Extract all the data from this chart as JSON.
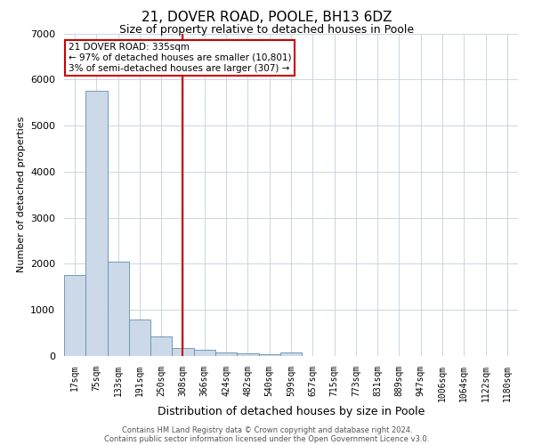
{
  "title": "21, DOVER ROAD, POOLE, BH13 6DZ",
  "subtitle": "Size of property relative to detached houses in Poole",
  "xlabel": "Distribution of detached houses by size in Poole",
  "ylabel": "Number of detached properties",
  "categories": [
    "17sqm",
    "75sqm",
    "133sqm",
    "191sqm",
    "250sqm",
    "308sqm",
    "366sqm",
    "424sqm",
    "482sqm",
    "540sqm",
    "599sqm",
    "657sqm",
    "715sqm",
    "773sqm",
    "831sqm",
    "889sqm",
    "947sqm",
    "1006sqm",
    "1064sqm",
    "1122sqm",
    "1180sqm"
  ],
  "values": [
    1750,
    5750,
    2050,
    800,
    420,
    180,
    130,
    80,
    50,
    35,
    70,
    0,
    0,
    0,
    0,
    0,
    0,
    0,
    0,
    0,
    0
  ],
  "bar_color": "#ccd9e8",
  "bar_edge_color": "#6090b0",
  "vline_color": "#cc0000",
  "vline_x_index": 5.46,
  "annotation_text": "21 DOVER ROAD: 335sqm\n← 97% of detached houses are smaller (10,801)\n3% of semi-detached houses are larger (307) →",
  "box_edge_color": "#cc0000",
  "footnote1": "Contains HM Land Registry data © Crown copyright and database right 2024.",
  "footnote2": "Contains public sector information licensed under the Open Government Licence v3.0.",
  "ylim": [
    0,
    7000
  ],
  "yticks": [
    0,
    1000,
    2000,
    3000,
    4000,
    5000,
    6000,
    7000
  ],
  "grid_color": "#ccd5e0",
  "title_fontsize": 11,
  "subtitle_fontsize": 9,
  "ylabel_fontsize": 8,
  "xlabel_fontsize": 9,
  "tick_fontsize": 7,
  "background_color": "#ffffff",
  "annotation_fontsize": 7.5
}
